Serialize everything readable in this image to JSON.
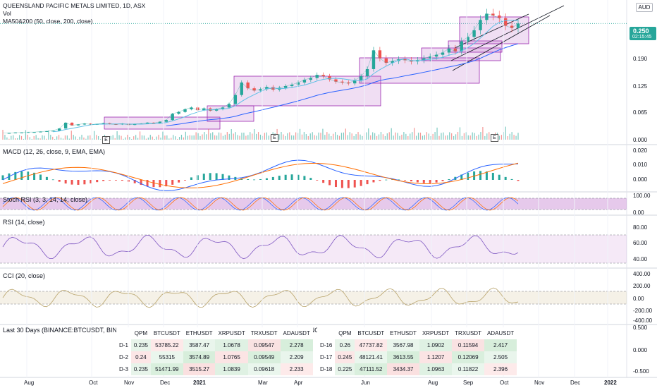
{
  "header": {
    "title": "QUEENSLAND PACIFIC METALS LIMITED, 1D, ASX",
    "vol_label": "Vol",
    "ma_label": "MA50&200 (50, close, 200, close)",
    "currency": "AUD"
  },
  "price_tag": {
    "price": "0.250",
    "countdown": "02:15:45"
  },
  "panes": {
    "macd": "MACD (12, 26, close, 9, EMA, EMA)",
    "stoch": "Stoch RSI (3, 3, 14, 14, close)",
    "rsi": "RSI (14, close)",
    "cci": "CCI (20, close)",
    "table": "Last 30 Days (BINANCE:BTCUSDT, BINANCE:ETHUSDT, BINANCE:XRPUSDT, BINANCE:TRXUSDT, BINANCE:ADAUSDT, Normal)"
  },
  "earnings_marker": "E",
  "chart_data": {
    "type": "line",
    "x_axis_labels": [
      "Aug",
      "Oct",
      "Nov",
      "Dec",
      "2021",
      "Mar",
      "Apr",
      "Jun",
      "Aug",
      "Sep",
      "Oct",
      "Nov",
      "Dec",
      "2022"
    ],
    "price": {
      "ylim": [
        -0.01,
        0.29
      ],
      "ticks": [
        "0.250",
        "0.190",
        "0.125",
        "0.065",
        "0.000"
      ],
      "close": [
        0.005,
        0.005,
        0.006,
        0.006,
        0.007,
        0.007,
        0.008,
        0.009,
        0.01,
        0.015,
        0.028,
        0.022,
        0.024,
        0.026,
        0.024,
        0.025,
        0.027,
        0.025,
        0.024,
        0.026,
        0.023,
        0.025,
        0.026,
        0.028,
        0.027,
        0.03,
        0.034,
        0.048,
        0.052,
        0.058,
        0.062,
        0.056,
        0.06,
        0.055,
        0.058,
        0.062,
        0.07,
        0.09,
        0.118,
        0.105,
        0.1,
        0.103,
        0.108,
        0.102,
        0.106,
        0.11,
        0.113,
        0.118,
        0.124,
        0.128,
        0.135,
        0.132,
        0.125,
        0.12,
        0.118,
        0.116,
        0.123,
        0.132,
        0.148,
        0.19,
        0.172,
        0.162,
        0.166,
        0.17,
        0.168,
        0.165,
        0.168,
        0.172,
        0.176,
        0.18,
        0.185,
        0.194,
        0.188,
        0.21,
        0.22,
        0.235,
        0.258,
        0.272,
        0.268,
        0.262,
        0.245,
        0.24,
        0.25
      ],
      "ma50_from_index": 8,
      "ma200_from_index": 26
    },
    "macd": {
      "ticks": [
        "0.020",
        "0.010",
        "0.000"
      ]
    },
    "stoch_rsi": {
      "ticks": [
        "100.00",
        "0.00"
      ]
    },
    "rsi": {
      "ticks": [
        "80.00",
        "60.00",
        "40.00"
      ]
    },
    "cci": {
      "ticks": [
        "400.00",
        "200.00",
        "0.00",
        "-200.00",
        "-400.00"
      ]
    },
    "table_pane": {
      "ticks": [
        "0.500",
        "0.000",
        "-0.500"
      ]
    }
  },
  "table": {
    "headers": [
      "QPM",
      "BTCUSDT",
      "ETHUSDT",
      "XRPUSDT",
      "TRXUSDT",
      "ADAUSDT"
    ],
    "left": [
      {
        "day": "D-1",
        "values": [
          "0.235",
          "53785.22",
          "3587.47",
          "1.0678",
          "0.09547",
          "2.278"
        ]
      },
      {
        "day": "D-2",
        "values": [
          "0.24",
          "55315",
          "3574.89",
          "1.0765",
          "0.09549",
          "2.209"
        ]
      },
      {
        "day": "D-3",
        "values": [
          "0.235",
          "51471.99",
          "3515.27",
          "1.0839",
          "0.09618",
          "2.233"
        ]
      }
    ],
    "right": [
      {
        "day": "D-16",
        "values": [
          "0.26",
          "47737.82",
          "3567.98",
          "1.0902",
          "0.11594",
          "2.417"
        ]
      },
      {
        "day": "D-17",
        "values": [
          "0.245",
          "48121.41",
          "3613.55",
          "1.1207",
          "0.12069",
          "2.505"
        ]
      },
      {
        "day": "D-18",
        "values": [
          "0.225",
          "47111.52",
          "3434.37",
          "1.0963",
          "0.11822",
          "2.396"
        ]
      }
    ]
  }
}
